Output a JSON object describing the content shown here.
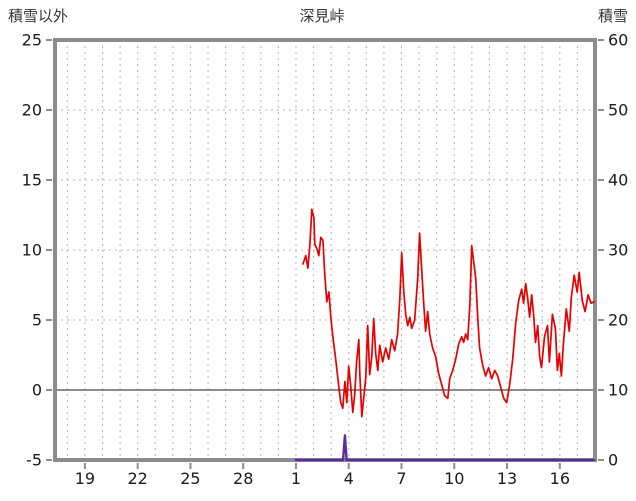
{
  "chart_data": {
    "type": "line",
    "title": "深見峠",
    "left_axis": {
      "title": "積雪以外",
      "min": -5,
      "max": 25,
      "ticks": [
        25,
        20,
        15,
        10,
        5,
        0,
        -5
      ],
      "zero_line": 0
    },
    "right_axis": {
      "title": "積雪",
      "min": 0,
      "max": 60,
      "ticks": [
        60,
        50,
        40,
        30,
        20,
        10,
        0
      ]
    },
    "x_axis": {
      "unit": "day-of-month",
      "min": 17.3,
      "max": 48,
      "grid_day_start": 18,
      "grid_day_end": 47,
      "ticks": [
        {
          "t": 19,
          "label": "19"
        },
        {
          "t": 22,
          "label": "22"
        },
        {
          "t": 25,
          "label": "25"
        },
        {
          "t": 28,
          "label": "28"
        },
        {
          "t": 31,
          "label": "1"
        },
        {
          "t": 34,
          "label": "4"
        },
        {
          "t": 37,
          "label": "7"
        },
        {
          "t": 40,
          "label": "10"
        },
        {
          "t": 43,
          "label": "13"
        },
        {
          "t": 46,
          "label": "16"
        }
      ]
    },
    "series": [
      {
        "name": "non-snow-value-red",
        "axis": "left",
        "color": "#e60000",
        "width": 1.7,
        "points": [
          [
            31.4,
            9.0
          ],
          [
            31.56,
            9.6
          ],
          [
            31.68,
            8.7
          ],
          [
            31.79,
            10.4
          ],
          [
            31.9,
            12.9
          ],
          [
            32.02,
            12.3
          ],
          [
            32.07,
            10.4
          ],
          [
            32.19,
            10.1
          ],
          [
            32.3,
            9.6
          ],
          [
            32.41,
            10.9
          ],
          [
            32.53,
            10.7
          ],
          [
            32.64,
            8.2
          ],
          [
            32.75,
            6.3
          ],
          [
            32.87,
            7.0
          ],
          [
            32.98,
            5.2
          ],
          [
            33.09,
            3.9
          ],
          [
            33.26,
            2.2
          ],
          [
            33.43,
            0.3
          ],
          [
            33.55,
            -0.9
          ],
          [
            33.66,
            -1.3
          ],
          [
            33.78,
            0.6
          ],
          [
            33.89,
            -0.9
          ],
          [
            34.0,
            1.7
          ],
          [
            34.11,
            0.3
          ],
          [
            34.23,
            -1.6
          ],
          [
            34.34,
            -0.3
          ],
          [
            34.45,
            2.1
          ],
          [
            34.57,
            3.6
          ],
          [
            34.63,
            1.2
          ],
          [
            34.74,
            -1.9
          ],
          [
            34.85,
            -0.6
          ],
          [
            34.97,
            0.9
          ],
          [
            35.08,
            4.6
          ],
          [
            35.19,
            1.1
          ],
          [
            35.31,
            2.4
          ],
          [
            35.42,
            5.1
          ],
          [
            35.53,
            2.6
          ],
          [
            35.65,
            1.4
          ],
          [
            35.76,
            3.2
          ],
          [
            35.93,
            2.0
          ],
          [
            36.1,
            3.0
          ],
          [
            36.27,
            2.2
          ],
          [
            36.44,
            3.6
          ],
          [
            36.61,
            2.8
          ],
          [
            36.78,
            4.0
          ],
          [
            36.9,
            6.5
          ],
          [
            37.01,
            9.8
          ],
          [
            37.13,
            7.0
          ],
          [
            37.24,
            5.4
          ],
          [
            37.35,
            4.6
          ],
          [
            37.47,
            5.2
          ],
          [
            37.58,
            4.4
          ],
          [
            37.75,
            5.0
          ],
          [
            37.92,
            8.0
          ],
          [
            38.03,
            11.2
          ],
          [
            38.15,
            8.6
          ],
          [
            38.26,
            6.2
          ],
          [
            38.37,
            4.2
          ],
          [
            38.49,
            5.6
          ],
          [
            38.6,
            4.0
          ],
          [
            38.77,
            3.0
          ],
          [
            38.94,
            2.4
          ],
          [
            39.11,
            1.2
          ],
          [
            39.28,
            0.4
          ],
          [
            39.45,
            -0.4
          ],
          [
            39.63,
            -0.6
          ],
          [
            39.74,
            0.8
          ],
          [
            39.91,
            1.4
          ],
          [
            40.08,
            2.2
          ],
          [
            40.25,
            3.3
          ],
          [
            40.42,
            3.8
          ],
          [
            40.53,
            3.4
          ],
          [
            40.65,
            4.0
          ],
          [
            40.76,
            3.6
          ],
          [
            40.88,
            6.0
          ],
          [
            40.99,
            10.3
          ],
          [
            41.1,
            9.2
          ],
          [
            41.22,
            8.0
          ],
          [
            41.33,
            5.2
          ],
          [
            41.44,
            3.0
          ],
          [
            41.61,
            1.8
          ],
          [
            41.78,
            1.0
          ],
          [
            41.95,
            1.6
          ],
          [
            42.13,
            0.8
          ],
          [
            42.3,
            1.4
          ],
          [
            42.47,
            1.0
          ],
          [
            42.64,
            0.2
          ],
          [
            42.81,
            -0.6
          ],
          [
            42.98,
            -0.9
          ],
          [
            43.15,
            0.4
          ],
          [
            43.32,
            2.2
          ],
          [
            43.49,
            4.8
          ],
          [
            43.66,
            6.4
          ],
          [
            43.83,
            7.2
          ],
          [
            43.94,
            6.2
          ],
          [
            44.06,
            7.6
          ],
          [
            44.17,
            6.6
          ],
          [
            44.28,
            5.2
          ],
          [
            44.4,
            6.8
          ],
          [
            44.51,
            5.4
          ],
          [
            44.62,
            3.4
          ],
          [
            44.74,
            4.6
          ],
          [
            44.85,
            2.4
          ],
          [
            44.96,
            1.6
          ],
          [
            45.13,
            3.8
          ],
          [
            45.3,
            4.6
          ],
          [
            45.41,
            2.0
          ],
          [
            45.58,
            5.4
          ],
          [
            45.75,
            4.4
          ],
          [
            45.86,
            1.4
          ],
          [
            45.97,
            2.6
          ],
          [
            46.09,
            1.0
          ],
          [
            46.2,
            3.2
          ],
          [
            46.37,
            5.8
          ],
          [
            46.54,
            4.2
          ],
          [
            46.65,
            6.6
          ],
          [
            46.82,
            8.2
          ],
          [
            46.99,
            7.0
          ],
          [
            47.1,
            8.4
          ],
          [
            47.27,
            6.4
          ],
          [
            47.44,
            5.6
          ],
          [
            47.61,
            6.8
          ],
          [
            47.78,
            6.2
          ],
          [
            47.95,
            6.3
          ]
        ]
      },
      {
        "name": "snow-depth-purple",
        "axis": "right",
        "color": "#5a2ca0",
        "width": 2.4,
        "points": [
          [
            31.0,
            0
          ],
          [
            33.68,
            0
          ],
          [
            33.78,
            3.5
          ],
          [
            33.88,
            0
          ],
          [
            47.95,
            0
          ]
        ]
      }
    ],
    "colors": {
      "grid": "#b3b3b3",
      "border": "#8c8c8c",
      "zero_line": "#666666",
      "tick_text": "#1a1a1a",
      "title_text": "#333333",
      "background": "#ffffff"
    }
  }
}
